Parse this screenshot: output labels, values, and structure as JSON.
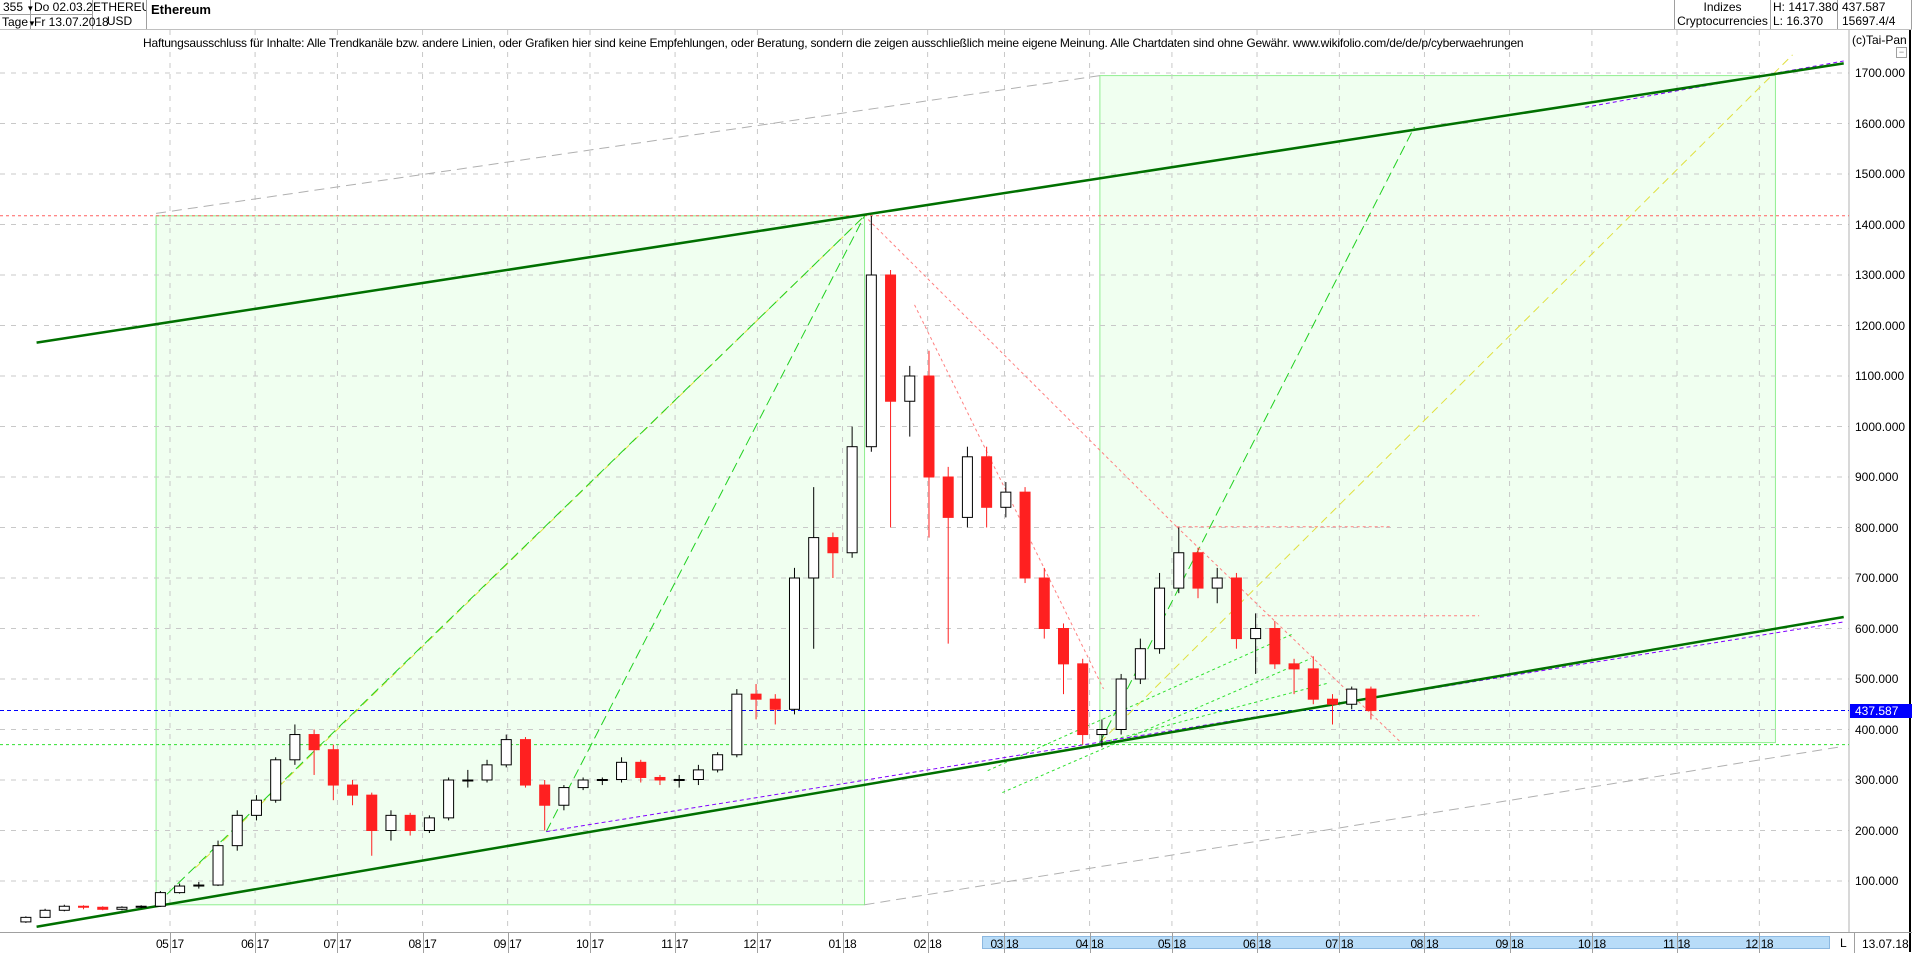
{
  "header": {
    "bars_count": "355",
    "period": "Tage",
    "date_from": "Do 02.03.2017",
    "date_to": "Fr 13.07.2018",
    "symbol": "ETHEREUM",
    "currency": "USD",
    "title": "Ethereum",
    "category1": "Indizes",
    "category2": "Cryptocurrencies",
    "high": "H: 1417.380",
    "low": "L: 16.370",
    "last": "437.587",
    "volume": "15697.4/4"
  },
  "disclaimer": "Haftungsausschluss für Inhalte: Alle Trendkanäle bzw. andere Linien, oder Grafiken hier sind keine Empfehlungen, oder Beratung, sondern die zeigen ausschließlich meine eigene Meinung. Alle Chartdaten sind ohne Gewähr.  www.wikifolio.com/de/de/p/cyberwaehrungen",
  "copyright": "(c)Tai-Pan",
  "bottom": {
    "l_label": "L",
    "end_date": "13.07.18"
  },
  "colors": {
    "up": "#000000",
    "down": "#ff2020",
    "channel": "#007000",
    "last_price": "#0000ff",
    "box_fill": "#f0fff0",
    "box_stroke": "#90ee90",
    "scrollbar": "#b8dcf8"
  },
  "chart_data": {
    "type": "candlestick",
    "ylim": [
      0,
      1750
    ],
    "yticks": [
      "100.000",
      "200.000",
      "300.000",
      "400.000",
      "500.000",
      "600.000",
      "700.000",
      "800.000",
      "900.000",
      "1000.000",
      "1100.000",
      "1200.000",
      "1300.000",
      "1400.000",
      "1500.000",
      "1600.000",
      "1700.000"
    ],
    "xticks": [
      "05 17",
      "06 17",
      "07 17",
      "08 17",
      "09 17",
      "10 17",
      "11 17",
      "12 17",
      "01 18",
      "02 18",
      "03 18",
      "04 18",
      "05 18",
      "06 18",
      "07 18",
      "08 18",
      "09 18",
      "10 18",
      "11 18",
      "12 18"
    ],
    "last_price": 437.587,
    "high_line": 1417.38,
    "support_line": 370,
    "grid": true,
    "candles_fields": [
      "week",
      "open",
      "high",
      "low",
      "close"
    ],
    "candles": [
      [
        "2017-03-06",
        19,
        30,
        17,
        28
      ],
      [
        "2017-03-13",
        28,
        45,
        27,
        42
      ],
      [
        "2017-03-20",
        42,
        53,
        40,
        50
      ],
      [
        "2017-03-27",
        50,
        52,
        44,
        48
      ],
      [
        "2017-04-03",
        48,
        50,
        42,
        44
      ],
      [
        "2017-04-10",
        44,
        50,
        42,
        48
      ],
      [
        "2017-04-17",
        48,
        52,
        46,
        50
      ],
      [
        "2017-04-24",
        50,
        80,
        49,
        77
      ],
      [
        "2017-05-01",
        77,
        95,
        75,
        90
      ],
      [
        "2017-05-08",
        90,
        98,
        85,
        92
      ],
      [
        "2017-05-15",
        92,
        180,
        90,
        170
      ],
      [
        "2017-05-22",
        170,
        240,
        160,
        230
      ],
      [
        "2017-05-29",
        230,
        270,
        220,
        260
      ],
      [
        "2017-06-05",
        260,
        345,
        255,
        340
      ],
      [
        "2017-06-12",
        340,
        410,
        330,
        390
      ],
      [
        "2017-06-19",
        390,
        400,
        310,
        360
      ],
      [
        "2017-06-26",
        360,
        370,
        260,
        290
      ],
      [
        "2017-07-03",
        290,
        300,
        250,
        270
      ],
      [
        "2017-07-10",
        270,
        275,
        150,
        200
      ],
      [
        "2017-07-17",
        200,
        240,
        180,
        230
      ],
      [
        "2017-07-24",
        230,
        235,
        190,
        200
      ],
      [
        "2017-07-31",
        200,
        230,
        195,
        225
      ],
      [
        "2017-08-07",
        225,
        305,
        220,
        300
      ],
      [
        "2017-08-14",
        300,
        320,
        285,
        300
      ],
      [
        "2017-08-21",
        300,
        340,
        295,
        330
      ],
      [
        "2017-08-28",
        330,
        390,
        325,
        380
      ],
      [
        "2017-09-04",
        380,
        385,
        285,
        290
      ],
      [
        "2017-09-11",
        290,
        300,
        200,
        250
      ],
      [
        "2017-09-18",
        250,
        290,
        240,
        285
      ],
      [
        "2017-09-25",
        285,
        305,
        280,
        300
      ],
      [
        "2017-10-02",
        300,
        305,
        290,
        301
      ],
      [
        "2017-10-09",
        301,
        345,
        295,
        335
      ],
      [
        "2017-10-16",
        335,
        340,
        295,
        305
      ],
      [
        "2017-10-23",
        305,
        310,
        290,
        300
      ],
      [
        "2017-10-30",
        300,
        310,
        285,
        301
      ],
      [
        "2017-11-06",
        301,
        330,
        290,
        320
      ],
      [
        "2017-11-13",
        320,
        355,
        315,
        350
      ],
      [
        "2017-11-20",
        350,
        480,
        345,
        470
      ],
      [
        "2017-11-27",
        470,
        490,
        420,
        460
      ],
      [
        "2017-12-04",
        460,
        470,
        410,
        440
      ],
      [
        "2017-12-11",
        440,
        720,
        430,
        700
      ],
      [
        "2017-12-18",
        700,
        880,
        560,
        780
      ],
      [
        "2017-12-25",
        780,
        790,
        700,
        750
      ],
      [
        "2018-01-01",
        750,
        1000,
        740,
        960
      ],
      [
        "2018-01-08",
        960,
        1417,
        950,
        1300
      ],
      [
        "2018-01-15",
        1300,
        1310,
        800,
        1050
      ],
      [
        "2018-01-22",
        1050,
        1120,
        980,
        1100
      ],
      [
        "2018-01-29",
        1100,
        1150,
        780,
        900
      ],
      [
        "2018-02-05",
        900,
        920,
        570,
        820
      ],
      [
        "2018-02-12",
        820,
        960,
        800,
        940
      ],
      [
        "2018-02-19",
        940,
        960,
        800,
        840
      ],
      [
        "2018-02-26",
        840,
        890,
        820,
        870
      ],
      [
        "2018-03-05",
        870,
        880,
        690,
        700
      ],
      [
        "2018-03-12",
        700,
        720,
        580,
        600
      ],
      [
        "2018-03-19",
        600,
        610,
        470,
        530
      ],
      [
        "2018-03-26",
        530,
        540,
        370,
        390
      ],
      [
        "2018-04-02",
        390,
        420,
        365,
        400
      ],
      [
        "2018-04-09",
        400,
        510,
        390,
        500
      ],
      [
        "2018-04-16",
        500,
        580,
        490,
        560
      ],
      [
        "2018-04-23",
        560,
        710,
        550,
        680
      ],
      [
        "2018-04-30",
        680,
        800,
        670,
        750
      ],
      [
        "2018-05-07",
        750,
        760,
        660,
        680
      ],
      [
        "2018-05-14",
        680,
        720,
        650,
        700
      ],
      [
        "2018-05-21",
        700,
        710,
        560,
        580
      ],
      [
        "2018-05-28",
        580,
        630,
        510,
        600
      ],
      [
        "2018-06-04",
        600,
        615,
        520,
        530
      ],
      [
        "2018-06-11",
        530,
        540,
        470,
        520
      ],
      [
        "2018-06-18",
        520,
        545,
        450,
        460
      ],
      [
        "2018-06-25",
        460,
        470,
        410,
        450
      ],
      [
        "2018-07-02",
        450,
        485,
        440,
        480
      ],
      [
        "2018-07-09",
        480,
        485,
        420,
        437.587
      ]
    ]
  }
}
